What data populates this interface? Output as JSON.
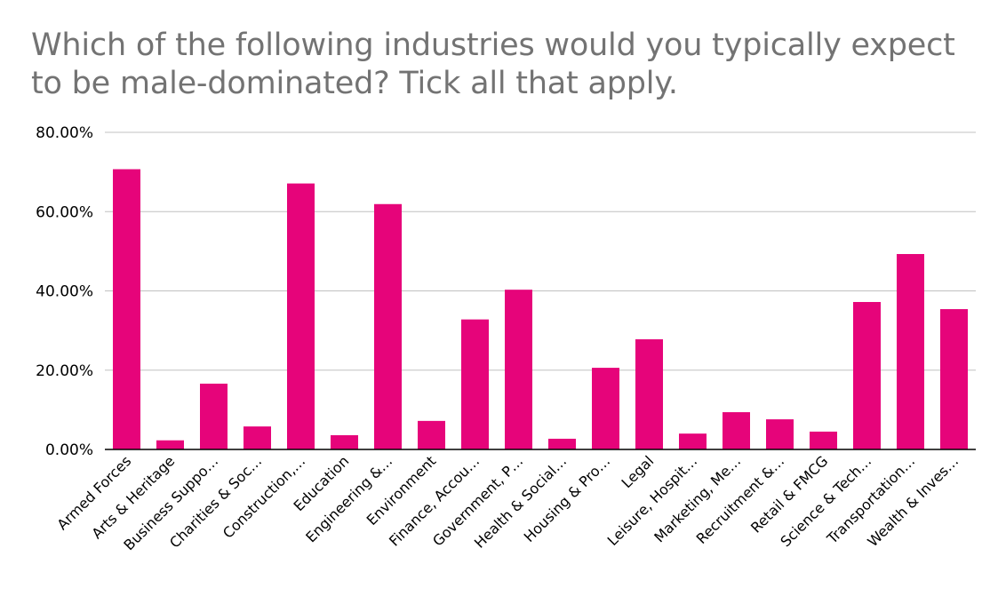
{
  "colors": {
    "bar": "#e6047a",
    "grid": "#c0c0c0",
    "axis": "#000000",
    "title": "#737373"
  },
  "chart_data": {
    "type": "bar",
    "title": "Which of the following industries would you typically expect to be male-dominated? Tick all that apply.",
    "xlabel": "",
    "ylabel": "",
    "ylim": [
      0,
      80
    ],
    "yticks": [
      "0.00%",
      "20.00%",
      "40.00%",
      "60.00%",
      "80.00%"
    ],
    "grid": true,
    "legend": "none",
    "categories": [
      "Armed Forces",
      "Arts & Heritage",
      "Business Suppo…",
      "Charities & Soc…",
      "Construction,…",
      "Education",
      "Engineering &…",
      "Environment",
      "Finance, Accou…",
      "Government, P…",
      "Health & Social…",
      "Housing & Pro…",
      "Legal",
      "Leisure, Hospit…",
      "Marketing, Me…",
      "Recruitment &…",
      "Retail & FMCG",
      "Science & Tech…",
      "Transportation…",
      "Wealth & Inves…"
    ],
    "values": [
      70.7,
      2.3,
      16.6,
      5.8,
      67.1,
      3.6,
      61.9,
      7.2,
      32.8,
      40.3,
      2.7,
      20.6,
      27.8,
      4.0,
      9.4,
      7.6,
      4.5,
      37.2,
      49.3,
      35.4
    ]
  }
}
